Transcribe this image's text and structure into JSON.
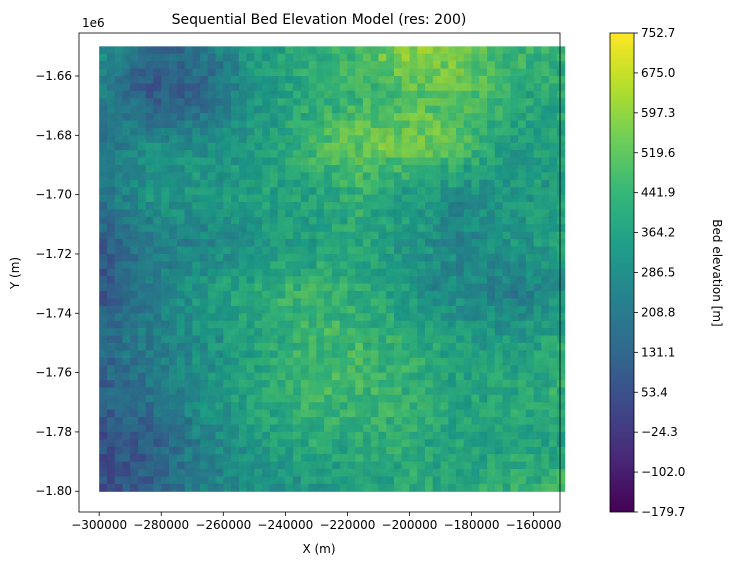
{
  "chart_data": {
    "type": "heatmap",
    "title": "Sequential Bed Elevation Model (res: 200)",
    "xlabel": "X (m)",
    "ylabel": "Y (m)",
    "y_offset_text": "1e6",
    "xlim": [
      -306500,
      -151500
    ],
    "ylim": [
      -1807000,
      -1645500
    ],
    "data_extent": {
      "x": [
        -300000,
        -150000
      ],
      "y": [
        -1800000,
        -1650000
      ]
    },
    "x_ticks": [
      {
        "value": -300000,
        "label": "−300000"
      },
      {
        "value": -280000,
        "label": "−280000"
      },
      {
        "value": -260000,
        "label": "−260000"
      },
      {
        "value": -240000,
        "label": "−240000"
      },
      {
        "value": -220000,
        "label": "−220000"
      },
      {
        "value": -200000,
        "label": "−200000"
      },
      {
        "value": -180000,
        "label": "−180000"
      },
      {
        "value": -160000,
        "label": "−160000"
      }
    ],
    "y_ticks": [
      {
        "value": -1660000,
        "label": "−1.66"
      },
      {
        "value": -1680000,
        "label": "−1.68"
      },
      {
        "value": -1700000,
        "label": "−1.70"
      },
      {
        "value": -1720000,
        "label": "−1.72"
      },
      {
        "value": -1740000,
        "label": "−1.74"
      },
      {
        "value": -1760000,
        "label": "−1.76"
      },
      {
        "value": -1780000,
        "label": "−1.78"
      },
      {
        "value": -1800000,
        "label": "−1.80"
      }
    ],
    "colorbar": {
      "label": "Bed elevation [m]",
      "colormap": "viridis",
      "min": -179.7,
      "max": 752.7,
      "ticks": [
        {
          "value": 752.7,
          "label": "752.7"
        },
        {
          "value": 675.0,
          "label": "675.0"
        },
        {
          "value": 597.3,
          "label": "597.3"
        },
        {
          "value": 519.6,
          "label": "519.6"
        },
        {
          "value": 441.9,
          "label": "441.9"
        },
        {
          "value": 364.2,
          "label": "364.2"
        },
        {
          "value": 286.5,
          "label": "286.5"
        },
        {
          "value": 208.8,
          "label": "208.8"
        },
        {
          "value": 131.1,
          "label": "131.1"
        },
        {
          "value": 53.4,
          "label": "53.4"
        },
        {
          "value": -24.3,
          "label": "−24.3"
        },
        {
          "value": -102.0,
          "label": "−102.0"
        },
        {
          "value": -179.7,
          "label": "−179.7"
        }
      ]
    },
    "grid": false,
    "legend": "none",
    "field_summary": {
      "grid_cols": 10,
      "grid_rows": 10,
      "note_values": "approximate coarse bed elevation (m), rows top (north) to bottom (south), columns west to east",
      "values": [
        [
          330,
          120,
          200,
          350,
          420,
          480,
          620,
          560,
          460,
          430
        ],
        [
          250,
          90,
          120,
          330,
          410,
          450,
          500,
          520,
          420,
          400
        ],
        [
          200,
          300,
          310,
          340,
          450,
          540,
          560,
          500,
          340,
          390
        ],
        [
          200,
          320,
          340,
          360,
          380,
          430,
          350,
          300,
          330,
          360
        ],
        [
          100,
          230,
          260,
          330,
          360,
          400,
          340,
          250,
          320,
          380
        ],
        [
          80,
          250,
          340,
          420,
          450,
          420,
          330,
          280,
          220,
          330
        ],
        [
          150,
          230,
          300,
          380,
          460,
          470,
          420,
          360,
          350,
          400
        ],
        [
          120,
          200,
          320,
          400,
          450,
          470,
          440,
          390,
          400,
          430
        ],
        [
          60,
          110,
          260,
          340,
          400,
          420,
          410,
          380,
          380,
          380
        ],
        [
          40,
          120,
          240,
          300,
          330,
          350,
          400,
          410,
          430,
          460
        ]
      ]
    }
  },
  "colors": {
    "viridis_stops": [
      "#440154",
      "#482878",
      "#3e4989",
      "#31688e",
      "#26828e",
      "#1f9e89",
      "#35b779",
      "#6ece58",
      "#b5de2b",
      "#fde725"
    ],
    "axes": "#000000",
    "background": "#ffffff"
  }
}
